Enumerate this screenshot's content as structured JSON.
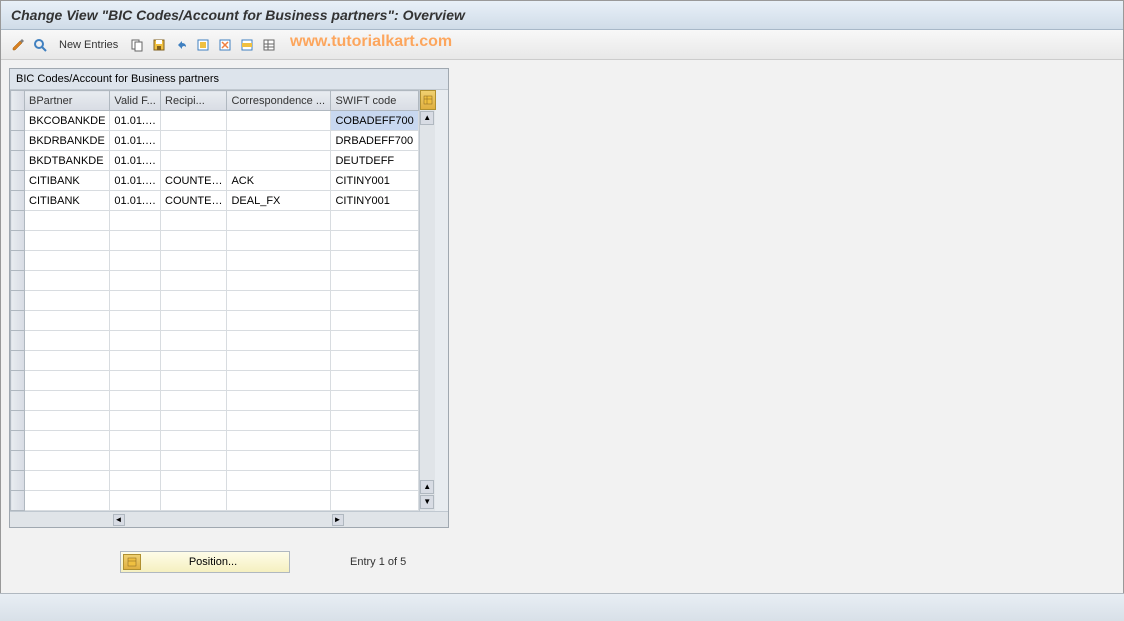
{
  "title": "Change View \"BIC Codes/Account for Business partners\": Overview",
  "toolbar": {
    "new_entries_label": "New Entries"
  },
  "watermark": "www.tutorialkart.com",
  "panel": {
    "header": "BIC Codes/Account for Business partners"
  },
  "columns": {
    "bpartner": "BPartner",
    "valid_from": "Valid F...",
    "recipient": "Recipi...",
    "correspondence": "Correspondence ...",
    "swift": "SWIFT code"
  },
  "rows": [
    {
      "bpartner": "BKCOBANKDE",
      "valid": "01.01.…",
      "recip": "",
      "corr": "",
      "swift": "COBADEFF700",
      "selected": true
    },
    {
      "bpartner": "BKDRBANKDE",
      "valid": "01.01.…",
      "recip": "",
      "corr": "",
      "swift": "DRBADEFF700"
    },
    {
      "bpartner": "BKDTBANKDE",
      "valid": "01.01.…",
      "recip": "",
      "corr": "",
      "swift": "DEUTDEFF"
    },
    {
      "bpartner": "CITIBANK",
      "valid": "01.01.…",
      "recip": "COUNTE…",
      "corr": "ACK",
      "swift": "CITINY001"
    },
    {
      "bpartner": "CITIBANK",
      "valid": "01.01.…",
      "recip": "COUNTE…",
      "corr": "DEAL_FX",
      "swift": "CITINY001"
    }
  ],
  "empty_rows": 15,
  "footer": {
    "position_label": "Position...",
    "entry_text": "Entry 1 of 5"
  },
  "colors": {
    "header_bg": "#e0e8f0",
    "accent": "#ff9944"
  }
}
